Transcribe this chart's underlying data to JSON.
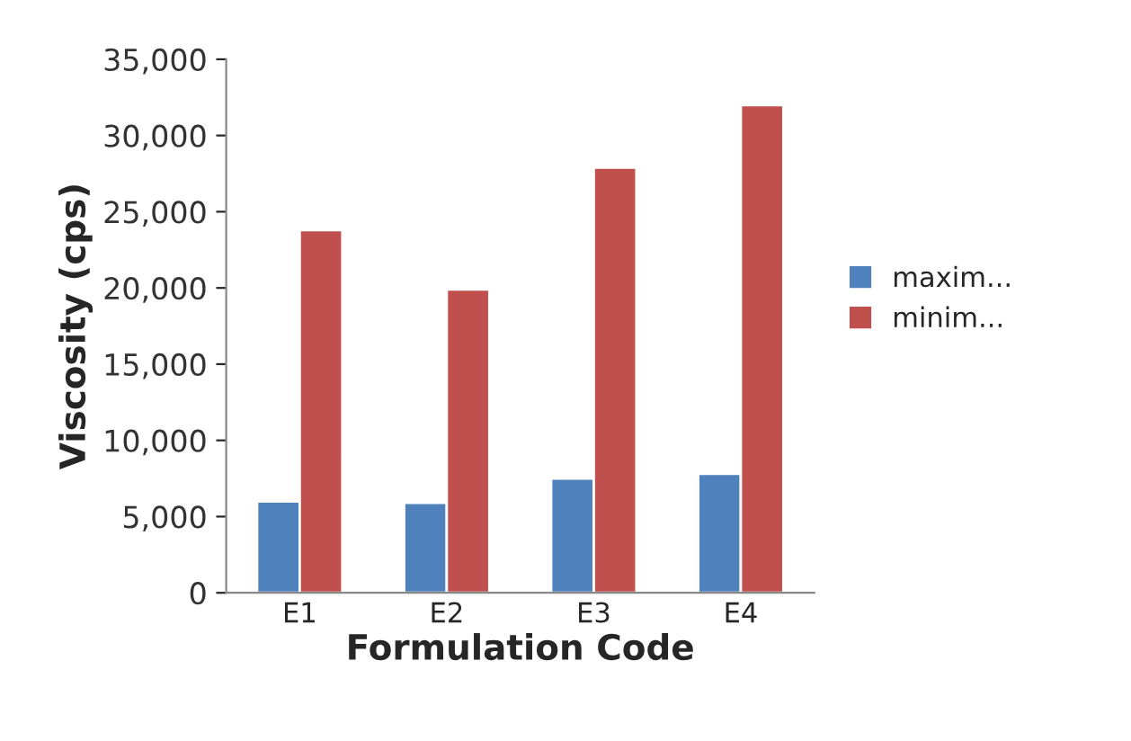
{
  "chart_data": {
    "type": "bar",
    "xlabel": "Formulation Code",
    "ylabel": "Viscosity (cps)",
    "categories": [
      "E1",
      "E2",
      "E3",
      "E4"
    ],
    "series": [
      {
        "name": "maxim...",
        "color": "#4f81bd",
        "values": [
          6000,
          5900,
          7500,
          7800
        ]
      },
      {
        "name": "minim...",
        "color": "#c0504d",
        "values": [
          23800,
          19900,
          27900,
          32000
        ]
      }
    ],
    "ylim": [
      0,
      35000
    ],
    "yticks": [
      {
        "value": 0,
        "label": "0"
      },
      {
        "value": 5000,
        "label": "5,000"
      },
      {
        "value": 10000,
        "label": "10,000"
      },
      {
        "value": 15000,
        "label": "15,000"
      },
      {
        "value": 20000,
        "label": "20,000"
      },
      {
        "value": 25000,
        "label": "25,000"
      },
      {
        "value": 30000,
        "label": "30,000"
      },
      {
        "value": 35000,
        "label": "35,000"
      }
    ],
    "grid": false,
    "legend": "right"
  }
}
